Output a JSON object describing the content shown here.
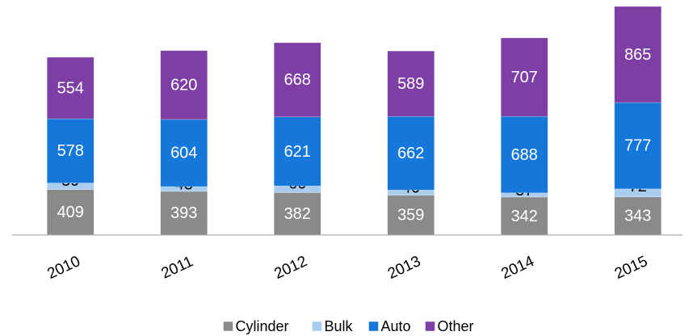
{
  "chart_data": {
    "type": "stacked-bar",
    "categories": [
      "2010",
      "2011",
      "2012",
      "2013",
      "2014",
      "2015"
    ],
    "series": [
      {
        "name": "Cylinder",
        "color": "#8a8a8a",
        "values": [
          409,
          393,
          382,
          359,
          342,
          343
        ]
      },
      {
        "name": "Bulk",
        "color": "#a9cdee",
        "values": [
          59,
          43,
          60,
          46,
          37,
          72
        ]
      },
      {
        "name": "Auto",
        "color": "#1477d9",
        "values": [
          578,
          604,
          621,
          662,
          688,
          777
        ]
      },
      {
        "name": "Other",
        "color": "#7d3fa3",
        "values": [
          554,
          620,
          668,
          589,
          707,
          865
        ]
      }
    ],
    "legend": "bottom"
  }
}
